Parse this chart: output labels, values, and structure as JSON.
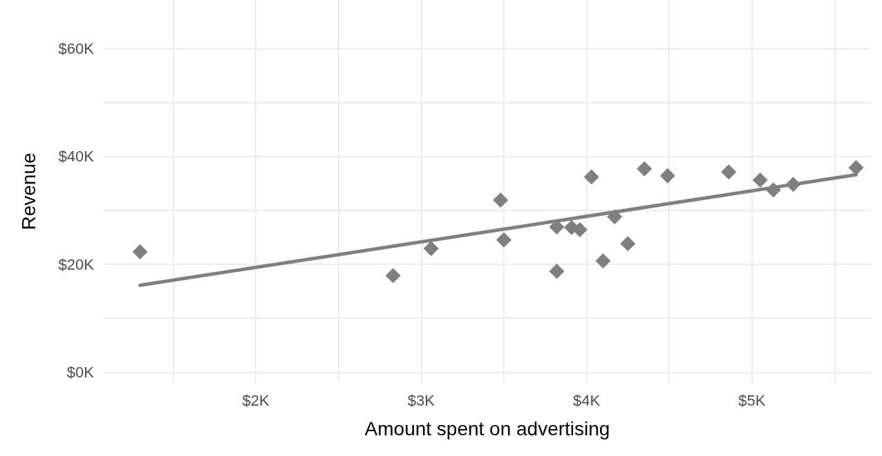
{
  "chart_data": {
    "type": "scatter",
    "xlabel": "Amount spent on advertising",
    "ylabel": "Revenue",
    "xlim": [
      1080,
      5720
    ],
    "ylim": [
      -2000,
      69000
    ],
    "xticks": [
      {
        "value": 1500,
        "label": null
      },
      {
        "value": 2000,
        "label": "$2K"
      },
      {
        "value": 2500,
        "label": null
      },
      {
        "value": 3000,
        "label": "$3K"
      },
      {
        "value": 3500,
        "label": null
      },
      {
        "value": 4000,
        "label": "$4K"
      },
      {
        "value": 4500,
        "label": null
      },
      {
        "value": 5000,
        "label": "$5K"
      },
      {
        "value": 5500,
        "label": null
      }
    ],
    "yticks": [
      {
        "value": 0,
        "label": "$0K"
      },
      {
        "value": 10000,
        "label": null
      },
      {
        "value": 20000,
        "label": "$20K"
      },
      {
        "value": 30000,
        "label": null
      },
      {
        "value": 40000,
        "label": "$40K"
      },
      {
        "value": 50000,
        "label": null
      },
      {
        "value": 60000,
        "label": "$60K"
      }
    ],
    "grid": true,
    "series": [
      {
        "color": "#7f7f7f",
        "marker": "diamond",
        "x": [
          1300,
          2830,
          3060,
          3480,
          3500,
          3820,
          3820,
          3910,
          3960,
          4030,
          4100,
          4170,
          4250,
          4350,
          4490,
          4860,
          5050,
          5130,
          5250,
          5630
        ],
        "values": [
          22300,
          17900,
          22900,
          31900,
          24500,
          26900,
          18700,
          26800,
          26400,
          36200,
          20600,
          28800,
          23800,
          37700,
          36400,
          37100,
          35600,
          33800,
          34800,
          37900
        ]
      },
      {
        "type": "line",
        "color": "#7f7f7f",
        "line_style": "solid",
        "x": [
          1300,
          5630
        ],
        "values": [
          16100,
          36600
        ]
      }
    ]
  }
}
